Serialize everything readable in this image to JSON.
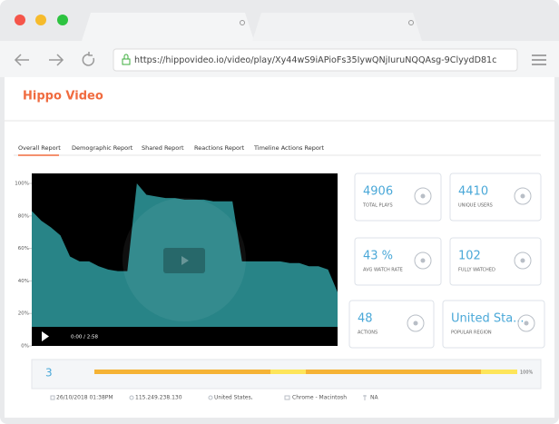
{
  "browser": {
    "url": "https://hippovideo.io/video/play/Xy44wS9iAPioFs35IywQNjIuruNQQAsg-9ClyydD81c"
  },
  "app": {
    "logo": "Hippo Video",
    "tabs": [
      "Overall Report",
      "Demographic Report",
      "Shared Report",
      "Reactions Report",
      "Timeline Actions Report"
    ],
    "retention_chart": {
      "ylim": [
        0,
        100
      ],
      "yticks": [
        {
          "value": 0,
          "label": "0%"
        },
        {
          "value": 20,
          "label": "20%"
        },
        {
          "value": 40,
          "label": "40%"
        },
        {
          "value": 60,
          "label": "60%"
        },
        {
          "value": 80,
          "label": "80%"
        },
        {
          "value": 100,
          "label": "100%"
        }
      ],
      "values": [
        83,
        77,
        73,
        68,
        55,
        52,
        52,
        49,
        47,
        46,
        46,
        100,
        93,
        92,
        91,
        91,
        90,
        90,
        90,
        89,
        89,
        89,
        52,
        52,
        52,
        52,
        52,
        51,
        51,
        49,
        49,
        47,
        33
      ],
      "color": "#2b8f93",
      "time": "0:00 / 2:58"
    },
    "stats": [
      {
        "value": "4906",
        "label": "TOTAL PLAYS"
      },
      {
        "value": "4410",
        "label": "UNIQUE USERS"
      },
      {
        "value": "43 %",
        "label": "AVG WATCH RATE"
      },
      {
        "value": "102",
        "label": "FULLY WATCHED"
      },
      {
        "value": "48",
        "label": "ACTIONS"
      },
      {
        "value": "United Sta...",
        "label": "POPULAR REGION"
      }
    ],
    "session": {
      "index": "3",
      "progress_label": "100%",
      "date": "26/10/2018 01:38PM",
      "ip": "115.249.238.130",
      "location": "United States,",
      "browser": "Chrome - Macintosh",
      "device": "NA"
    }
  }
}
